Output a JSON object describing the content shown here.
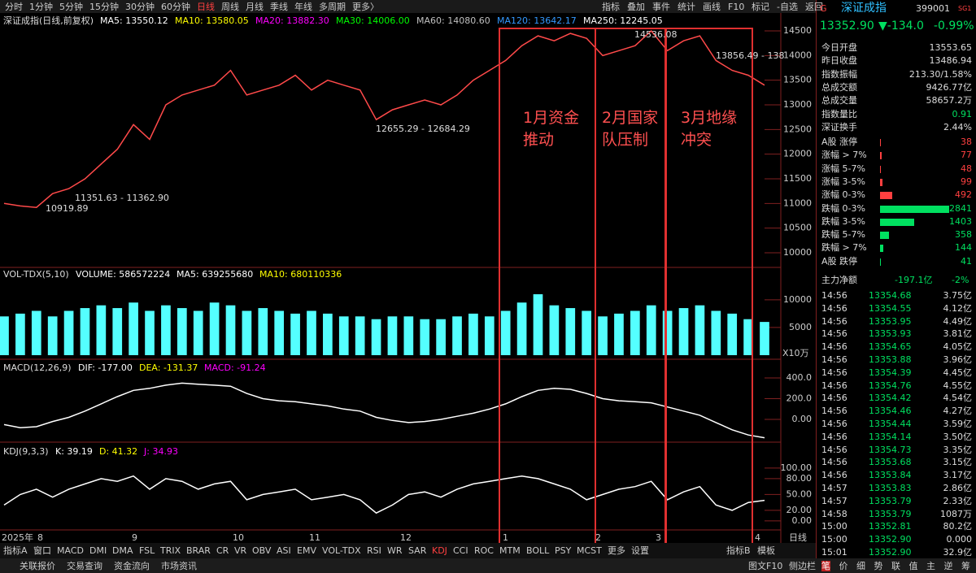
{
  "toolbar": {
    "left": [
      "分时",
      "1分钟",
      "5分钟",
      "15分钟",
      "30分钟",
      "60分钟",
      "日线",
      "周线",
      "月线",
      "季线",
      "年线",
      "多周期",
      "更多〉"
    ],
    "right": [
      "指标",
      "叠加",
      "事件",
      "统计",
      "画线",
      "F10",
      "标记",
      "-自选",
      "返回"
    ]
  },
  "chart_data": [
    {
      "type": "line",
      "title": "深证成指(日线,前复权)",
      "legend": [
        {
          "text": "MA5: 13550.12",
          "color": "#ffffff"
        },
        {
          "text": "MA10: 13580.05",
          "color": "#ffff00"
        },
        {
          "text": "MA20: 13882.30",
          "color": "#ff00ff"
        },
        {
          "text": "MA30: 14006.00",
          "color": "#00ff00"
        },
        {
          "text": "MA60: 14080.60",
          "color": "#c0c0c0"
        },
        {
          "text": "MA120: 13642.17",
          "color": "#3399ff"
        },
        {
          "text": "MA250: 12245.05",
          "color": "#ffffff"
        }
      ],
      "series": [
        {
          "name": "深证成指",
          "color": "#ff4a4a",
          "values": [
            11000,
            10950,
            10920,
            11200,
            11300,
            11500,
            11800,
            12100,
            12600,
            12300,
            13000,
            13200,
            13300,
            13400,
            13700,
            13200,
            13300,
            13400,
            13600,
            13300,
            13500,
            13400,
            13300,
            12700,
            12900,
            13000,
            13100,
            13000,
            13200,
            13500,
            13700,
            13900,
            14200,
            14400,
            14300,
            14450,
            14350,
            14000,
            14100,
            14200,
            14500,
            14100,
            14300,
            14400,
            13900,
            13700,
            13600,
            13400
          ]
        }
      ],
      "annotations": [
        "14536.08",
        "13856.49 - 138",
        "12655.29 - 12684.29",
        "11351.63 - 11362.90",
        "10919.89"
      ],
      "boxes": [
        "1月资金\n推动",
        "2月国家\n队压制",
        "3月地缘\n冲突"
      ],
      "ylim": [
        9720,
        14830
      ],
      "yticks": [
        10000,
        10500,
        11000,
        11500,
        12000,
        12500,
        13000,
        13500,
        14000,
        14500
      ],
      "x_labels": [
        "2025年",
        "8",
        "9",
        "10",
        "11",
        "12",
        "1",
        "2",
        "3",
        "4"
      ],
      "x_axis_label": "日线"
    },
    {
      "type": "bar",
      "title": "VOL-TDX(5,10)",
      "legend": [
        {
          "text": "VOLUME: 586572224",
          "color": "#ffffff"
        },
        {
          "text": "MA5: 639255680",
          "color": "#ffffff"
        },
        {
          "text": "MA10: 680110336",
          "color": "#ffff00"
        }
      ],
      "series": [
        {
          "name": "VOLUME",
          "color": "#54ffff",
          "values": [
            7000,
            7500,
            8000,
            7000,
            8000,
            8500,
            9000,
            8500,
            9500,
            8000,
            9000,
            8500,
            8000,
            9500,
            9000,
            8000,
            8500,
            8000,
            7500,
            8000,
            7500,
            7000,
            7000,
            6500,
            7000,
            7000,
            6500,
            6500,
            7000,
            7500,
            7000,
            8000,
            9500,
            11000,
            9000,
            8500,
            8000,
            7000,
            7500,
            8000,
            9000,
            8000,
            8500,
            9000,
            8000,
            7500,
            6500,
            6000
          ]
        }
      ],
      "unit": "X10万",
      "ylim": [
        0,
        15700
      ],
      "yticks": [
        5000,
        10000
      ]
    },
    {
      "type": "line",
      "title": "MACD(12,26,9)",
      "legend": [
        {
          "text": "DIF: -177.00",
          "color": "#ffffff"
        },
        {
          "text": "DEA: -131.37",
          "color": "#ffff00"
        },
        {
          "text": "MACD: -91.24",
          "color": "#ff00ff"
        }
      ],
      "series": [
        {
          "name": "DIF",
          "color": "#ffffff",
          "values": [
            -50,
            -80,
            -70,
            -20,
            20,
            80,
            150,
            220,
            280,
            300,
            330,
            350,
            340,
            330,
            320,
            250,
            200,
            180,
            170,
            150,
            130,
            100,
            80,
            20,
            -10,
            -30,
            -20,
            0,
            30,
            60,
            100,
            150,
            220,
            280,
            300,
            290,
            250,
            200,
            180,
            170,
            160,
            120,
            80,
            40,
            -30,
            -100,
            -150,
            -177
          ]
        }
      ],
      "ylim": [
        -188,
        557
      ],
      "yticks": [
        {
          "value": 0,
          "label": "0.00"
        },
        {
          "value": 200,
          "label": "200.0"
        },
        {
          "value": 400,
          "label": "400.0"
        }
      ]
    },
    {
      "type": "line",
      "title": "KDJ(9,3,3)",
      "legend": [
        {
          "text": "K: 39.19",
          "color": "#ffffff"
        },
        {
          "text": "D: 41.32",
          "color": "#ffff00"
        },
        {
          "text": "J: 34.93",
          "color": "#ff00ff"
        }
      ],
      "series": [
        {
          "name": "K",
          "color": "#ffffff",
          "values": [
            30,
            50,
            60,
            45,
            60,
            70,
            80,
            75,
            85,
            60,
            80,
            75,
            60,
            70,
            75,
            40,
            50,
            55,
            60,
            40,
            45,
            50,
            40,
            15,
            30,
            50,
            55,
            45,
            60,
            70,
            75,
            80,
            85,
            80,
            70,
            60,
            40,
            50,
            60,
            65,
            75,
            40,
            55,
            65,
            30,
            20,
            35,
            39
          ]
        }
      ],
      "ylim": [
        -14,
        143
      ],
      "yticks": [
        {
          "value": 0,
          "label": "0.00"
        },
        {
          "value": 20,
          "label": "20.00"
        },
        {
          "value": 50,
          "label": "50.00"
        },
        {
          "value": 80,
          "label": "80.00"
        },
        {
          "value": 100,
          "label": "100.00"
        }
      ]
    }
  ],
  "tabs": [
    "指标A",
    "窗口",
    "MACD",
    "DMI",
    "DMA",
    "FSL",
    "TRIX",
    "BRAR",
    "CR",
    "VR",
    "OBV",
    "ASI",
    "EMV",
    "VOL-TDX",
    "RSI",
    "WR",
    "SAR",
    "KDJ",
    "CCI",
    "ROC",
    "MTM",
    "BOLL",
    "PSY",
    "MCST",
    "更多",
    "设置"
  ],
  "tabs_right": [
    "指标B",
    "模板"
  ],
  "status": [
    "关联报价",
    "交易查询",
    "资金流向",
    "市场资讯"
  ],
  "status_right": [
    "图文F10",
    "侧边栏"
  ],
  "quote": {
    "mark": "G",
    "name": "深证成指",
    "code": "399001",
    "badge": "SG1",
    "price": "13352.90",
    "change": "▼-134.0",
    "pct": "-0.99%",
    "stats": [
      [
        "今日开盘",
        "13553.65"
      ],
      [
        "昨日收盘",
        "13486.94"
      ],
      [
        "指数振幅",
        "213.30/1.58%"
      ],
      [
        "总成交额",
        "9426.77亿"
      ],
      [
        "总成交量",
        "58657.2万"
      ],
      [
        "指数量比",
        "0.91"
      ],
      [
        "深证换手",
        "2.44%"
      ]
    ],
    "breadth": [
      {
        "label": "A股 涨停",
        "value": 38
      },
      {
        "label": "涨幅 > 7%",
        "value": 77
      },
      {
        "label": "涨幅 5-7%",
        "value": 48
      },
      {
        "label": "涨幅 3-5%",
        "value": 99
      },
      {
        "label": "涨幅 0-3%",
        "value": 492
      },
      {
        "label": "跌幅 0-3%",
        "value": 2841
      },
      {
        "label": "跌幅 3-5%",
        "value": 1403
      },
      {
        "label": "跌幅 5-7%",
        "value": 358
      },
      {
        "label": "跌幅 > 7%",
        "value": 144
      },
      {
        "label": "A股 跌停",
        "value": 41
      }
    ],
    "flow": [
      "主力净额",
      "-197.1亿",
      "-2%"
    ],
    "ticks": [
      [
        "14:56",
        "13354.68",
        "3.75亿"
      ],
      [
        "14:56",
        "13354.55",
        "4.12亿"
      ],
      [
        "14:56",
        "13353.95",
        "4.49亿"
      ],
      [
        "14:56",
        "13353.93",
        "3.81亿"
      ],
      [
        "14:56",
        "13354.65",
        "4.05亿"
      ],
      [
        "14:56",
        "13353.88",
        "3.96亿"
      ],
      [
        "14:56",
        "13354.39",
        "4.45亿"
      ],
      [
        "14:56",
        "13354.76",
        "4.55亿"
      ],
      [
        "14:56",
        "13354.42",
        "4.54亿"
      ],
      [
        "14:56",
        "13354.46",
        "4.27亿"
      ],
      [
        "14:56",
        "13354.44",
        "3.59亿"
      ],
      [
        "14:56",
        "13354.14",
        "3.50亿"
      ],
      [
        "14:56",
        "13354.73",
        "3.35亿"
      ],
      [
        "14:56",
        "13353.68",
        "3.15亿"
      ],
      [
        "14:56",
        "13353.84",
        "3.17亿"
      ],
      [
        "14:57",
        "13353.83",
        "2.86亿"
      ],
      [
        "14:57",
        "13353.79",
        "2.33亿"
      ],
      [
        "14:58",
        "13353.79",
        "1087万"
      ],
      [
        "15:00",
        "13352.81",
        "80.2亿"
      ],
      [
        "15:00",
        "13352.90",
        "0.000"
      ],
      [
        "15:01",
        "13352.90",
        "32.9亿"
      ]
    ],
    "tools": [
      "笔",
      "价",
      "细",
      "势",
      "联",
      "值",
      "主",
      "逆",
      "筹"
    ]
  }
}
